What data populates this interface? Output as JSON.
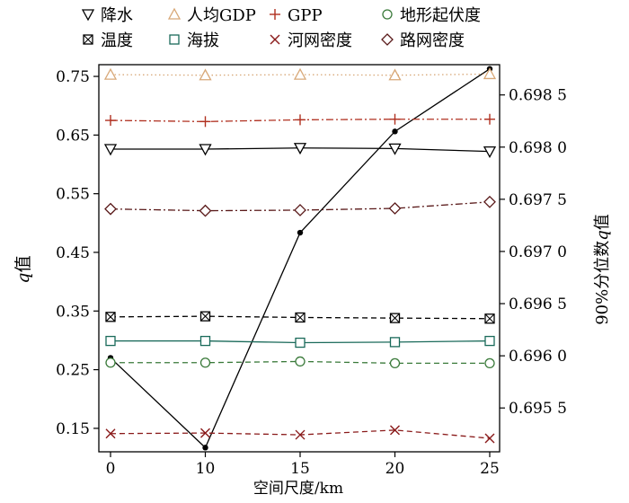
{
  "chart_data": {
    "type": "line",
    "xlabel": "空间尺度/km",
    "ylabel_left_italic": "q",
    "ylabel_left_rest": "值",
    "ylabel_right_prefix": "90%分位数",
    "ylabel_right_italic": "q",
    "ylabel_right_suffix": "值",
    "x": [
      0,
      10,
      15,
      20,
      25
    ],
    "x_ticks": [
      "0",
      "10",
      "15",
      "20",
      "25"
    ],
    "y_left_ticks": [
      0.15,
      0.25,
      0.35,
      0.45,
      0.55,
      0.65,
      0.75
    ],
    "y_left_tick_labels": [
      "0.15",
      "0.25",
      "0.35",
      "0.45",
      "0.55",
      "0.65",
      "0.75"
    ],
    "y_left_lim": [
      0.11,
      0.77
    ],
    "y_right_ticks": [
      0.6955,
      0.696,
      0.6965,
      0.697,
      0.6975,
      0.698,
      0.6985
    ],
    "y_right_tick_labels": [
      "0.695 5",
      "0.696 0",
      "0.696 5",
      "0.697 0",
      "0.697 5",
      "0.698 0",
      "0.698 5"
    ],
    "y_right_lim": [
      0.69508,
      0.69879
    ],
    "legend_position": "top",
    "series": [
      {
        "name": "降水",
        "marker": "triangle-down",
        "color": "#000000",
        "line": "solid",
        "values": [
          0.626,
          0.626,
          0.628,
          0.627,
          0.622
        ]
      },
      {
        "name": "人均GDP",
        "marker": "triangle-up",
        "color": "#d8a878",
        "line": "dotted",
        "values": [
          0.753,
          0.752,
          0.753,
          0.752,
          0.754
        ]
      },
      {
        "name": "GPP",
        "marker": "plus",
        "color": "#b03020",
        "line": "dashdot",
        "values": [
          0.675,
          0.673,
          0.676,
          0.677,
          0.677
        ]
      },
      {
        "name": "地形起伏度",
        "marker": "circle",
        "color": "#3a7a3a",
        "line": "dashed",
        "values": [
          0.262,
          0.262,
          0.264,
          0.261,
          0.261
        ]
      },
      {
        "name": "温度",
        "marker": "boxed-x",
        "color": "#000000",
        "line": "dashed",
        "values": [
          0.34,
          0.341,
          0.339,
          0.338,
          0.337
        ]
      },
      {
        "name": "海拔",
        "marker": "square",
        "color": "#1a6a5a",
        "line": "solid",
        "values": [
          0.299,
          0.299,
          0.296,
          0.297,
          0.299
        ]
      },
      {
        "name": "河网密度",
        "marker": "x",
        "color": "#8a1a1a",
        "line": "dashed",
        "values": [
          0.141,
          0.142,
          0.139,
          0.147,
          0.133
        ]
      },
      {
        "name": "路网密度",
        "marker": "diamond",
        "color": "#5a1a1a",
        "line": "dashdot",
        "values": [
          0.524,
          0.521,
          0.522,
          0.525,
          0.536
        ]
      }
    ],
    "series_right": {
      "name": "90%分位数q值",
      "marker": "dot",
      "color": "#000000",
      "line": "solid",
      "values": [
        0.69598,
        0.69512,
        0.69718,
        0.69815,
        0.69875
      ]
    }
  }
}
